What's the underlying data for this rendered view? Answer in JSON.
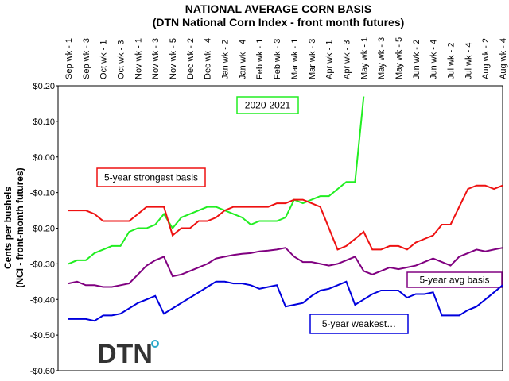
{
  "chart_data": {
    "type": "line",
    "title": "NATIONAL AVERAGE CORN BASIS",
    "subtitle": "(DTN National Corn Index - front month futures)",
    "y_label": "Cents per bushels",
    "y_label_2": "(NCI - front-month futures)",
    "logo": "DTN",
    "categories": [
      "Sep wk - 1",
      null,
      "Sep wk - 3",
      null,
      "Oct wk - 1",
      null,
      "Oct wk - 3",
      null,
      "Nov wk - 1",
      null,
      "Nov wk - 3",
      null,
      "Nov wk - 5",
      null,
      "Dec wk - 2",
      null,
      "Dec wk - 4",
      null,
      "Jan wk - 2",
      null,
      "Jan wk - 4",
      null,
      "Feb wk - 1",
      null,
      "Feb wk - 3",
      null,
      "Mar wk - 1",
      null,
      "Mar wk - 3",
      null,
      "Apr wk - 1",
      null,
      "Apr wk - 3",
      null,
      "May wk - 1",
      null,
      "May wk - 3",
      null,
      "May wk - 5",
      null,
      "Jun wk - 2",
      null,
      "Jun wk - 4",
      null,
      "Jul wk - 2",
      null,
      "Jul wk - 4",
      null,
      "Aug wk - 2",
      null,
      "Aug wk - 4"
    ],
    "ylim": [
      -0.6,
      0.2
    ],
    "yticks": [
      {
        "value": 0.2,
        "label": "$0.20"
      },
      {
        "value": 0.1,
        "label": "$0.10"
      },
      {
        "value": 0,
        "label": "$0.00"
      },
      {
        "value": -0.1,
        "label": "-$0.10"
      },
      {
        "value": -0.2,
        "label": "-$0.20"
      },
      {
        "value": -0.3,
        "label": "-$0.30"
      },
      {
        "value": -0.4,
        "label": "-$0.40"
      },
      {
        "value": -0.5,
        "label": "-$0.50"
      },
      {
        "value": -0.6,
        "label": "-$0.60"
      }
    ],
    "grid": false,
    "series": [
      {
        "name": "2020-2021",
        "color": "#22ee22",
        "values": [
          -0.3,
          -0.29,
          -0.29,
          -0.27,
          -0.26,
          -0.25,
          -0.25,
          -0.21,
          -0.2,
          -0.2,
          -0.19,
          -0.16,
          -0.2,
          -0.17,
          -0.16,
          -0.15,
          -0.14,
          -0.14,
          -0.15,
          -0.16,
          -0.17,
          -0.19,
          -0.18,
          -0.18,
          -0.18,
          -0.17,
          -0.12,
          -0.13,
          -0.12,
          -0.11,
          -0.11,
          -0.09,
          -0.07,
          -0.07,
          0.17,
          null,
          null,
          null,
          null,
          null,
          null,
          null,
          null,
          null,
          null,
          null,
          null,
          null,
          null,
          null,
          null
        ]
      },
      {
        "name": "5-year strongest basis",
        "color": "#ee1111",
        "values": [
          -0.15,
          -0.15,
          -0.15,
          -0.16,
          -0.18,
          -0.18,
          -0.18,
          -0.18,
          -0.16,
          -0.14,
          -0.14,
          -0.14,
          -0.22,
          -0.2,
          -0.2,
          -0.18,
          -0.18,
          -0.17,
          -0.15,
          -0.14,
          -0.14,
          -0.14,
          -0.14,
          -0.14,
          -0.13,
          -0.13,
          -0.12,
          -0.12,
          -0.13,
          -0.14,
          -0.2,
          -0.26,
          -0.25,
          -0.23,
          -0.21,
          -0.26,
          -0.26,
          -0.25,
          -0.25,
          -0.26,
          -0.24,
          -0.23,
          -0.22,
          -0.19,
          -0.19,
          -0.14,
          -0.09,
          -0.08,
          -0.08,
          -0.09,
          -0.08
        ]
      },
      {
        "name": "5-year avg basis",
        "color": "#800080",
        "values": [
          -0.355,
          -0.35,
          -0.36,
          -0.36,
          -0.365,
          -0.365,
          -0.36,
          -0.355,
          -0.33,
          -0.305,
          -0.29,
          -0.28,
          -0.335,
          -0.33,
          -0.32,
          -0.31,
          -0.3,
          -0.285,
          -0.28,
          -0.275,
          -0.272,
          -0.27,
          -0.265,
          -0.263,
          -0.26,
          -0.255,
          -0.28,
          -0.295,
          -0.295,
          -0.3,
          -0.305,
          -0.3,
          -0.29,
          -0.28,
          -0.32,
          -0.33,
          -0.32,
          -0.31,
          -0.315,
          -0.31,
          -0.305,
          -0.295,
          -0.285,
          -0.295,
          -0.305,
          -0.28,
          -0.27,
          -0.26,
          -0.265,
          -0.26,
          -0.255
        ]
      },
      {
        "name": "5-year weakest…",
        "color": "#0000dd",
        "values": [
          -0.455,
          -0.455,
          -0.455,
          -0.46,
          -0.445,
          -0.445,
          -0.44,
          -0.425,
          -0.41,
          -0.4,
          -0.39,
          -0.44,
          -0.425,
          -0.41,
          -0.395,
          -0.38,
          -0.365,
          -0.35,
          -0.35,
          -0.355,
          -0.355,
          -0.36,
          -0.37,
          -0.365,
          -0.36,
          -0.42,
          -0.415,
          -0.41,
          -0.39,
          -0.375,
          -0.37,
          -0.36,
          -0.35,
          -0.415,
          -0.4,
          -0.385,
          -0.375,
          -0.375,
          -0.375,
          -0.395,
          -0.385,
          -0.385,
          -0.38,
          -0.445,
          -0.445,
          -0.445,
          -0.43,
          -0.42,
          -0.4,
          -0.38,
          -0.36
        ]
      }
    ]
  }
}
